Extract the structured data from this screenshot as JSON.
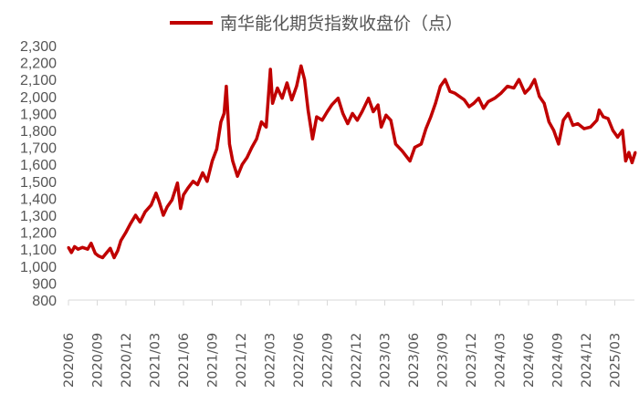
{
  "chart_data": {
    "type": "line",
    "title": "",
    "xlabel": "",
    "ylabel": "",
    "ylim": [
      800,
      2300
    ],
    "yticks": [
      "800",
      "900",
      "1,000",
      "1,100",
      "1,200",
      "1,300",
      "1,400",
      "1,500",
      "1,600",
      "1,700",
      "1,800",
      "1,900",
      "2,000",
      "2,100",
      "2,200",
      "2,300"
    ],
    "xticks": [
      "2020/06",
      "2020/09",
      "2020/12",
      "2021/03",
      "2021/06",
      "2021/09",
      "2021/12",
      "2022/03",
      "2022/06",
      "2022/09",
      "2022/12",
      "2023/03",
      "2023/06",
      "2023/09",
      "2023/12",
      "2024/03",
      "2024/06",
      "2024/09",
      "2024/12",
      "2025/03"
    ],
    "grid": false,
    "legend": "top-center",
    "series": [
      {
        "name": "南华能化期货指数收盘价（点）",
        "color": "#C00000",
        "points": [
          [
            "2020-06-01",
            1110
          ],
          [
            "2020-06-10",
            1080
          ],
          [
            "2020-06-20",
            1115
          ],
          [
            "2020-07-01",
            1100
          ],
          [
            "2020-07-15",
            1110
          ],
          [
            "2020-08-01",
            1100
          ],
          [
            "2020-08-12",
            1135
          ],
          [
            "2020-08-25",
            1075
          ],
          [
            "2020-09-05",
            1060
          ],
          [
            "2020-09-18",
            1050
          ],
          [
            "2020-10-01",
            1080
          ],
          [
            "2020-10-12",
            1105
          ],
          [
            "2020-10-24",
            1050
          ],
          [
            "2020-11-05",
            1090
          ],
          [
            "2020-11-15",
            1150
          ],
          [
            "2020-12-01",
            1200
          ],
          [
            "2020-12-15",
            1250
          ],
          [
            "2021-01-01",
            1300
          ],
          [
            "2021-01-15",
            1260
          ],
          [
            "2021-02-01",
            1320
          ],
          [
            "2021-02-20",
            1360
          ],
          [
            "2021-03-05",
            1430
          ],
          [
            "2021-03-15",
            1380
          ],
          [
            "2021-03-28",
            1300
          ],
          [
            "2021-04-10",
            1350
          ],
          [
            "2021-04-25",
            1390
          ],
          [
            "2021-05-12",
            1490
          ],
          [
            "2021-05-22",
            1340
          ],
          [
            "2021-06-01",
            1420
          ],
          [
            "2021-06-15",
            1460
          ],
          [
            "2021-07-01",
            1500
          ],
          [
            "2021-07-15",
            1480
          ],
          [
            "2021-08-01",
            1550
          ],
          [
            "2021-08-15",
            1500
          ],
          [
            "2021-09-01",
            1620
          ],
          [
            "2021-09-15",
            1690
          ],
          [
            "2021-09-28",
            1850
          ],
          [
            "2021-10-08",
            1900
          ],
          [
            "2021-10-15",
            2060
          ],
          [
            "2021-10-25",
            1720
          ],
          [
            "2021-11-05",
            1620
          ],
          [
            "2021-11-20",
            1530
          ],
          [
            "2021-12-05",
            1600
          ],
          [
            "2021-12-20",
            1640
          ],
          [
            "2022-01-05",
            1700
          ],
          [
            "2022-01-20",
            1750
          ],
          [
            "2022-02-05",
            1850
          ],
          [
            "2022-02-20",
            1820
          ],
          [
            "2022-03-03",
            2160
          ],
          [
            "2022-03-10",
            1960
          ],
          [
            "2022-03-25",
            2050
          ],
          [
            "2022-04-10",
            1990
          ],
          [
            "2022-04-25",
            2080
          ],
          [
            "2022-05-10",
            1980
          ],
          [
            "2022-05-25",
            2060
          ],
          [
            "2022-06-09",
            2180
          ],
          [
            "2022-06-20",
            2100
          ],
          [
            "2022-07-01",
            1920
          ],
          [
            "2022-07-15",
            1750
          ],
          [
            "2022-07-28",
            1880
          ],
          [
            "2022-08-15",
            1860
          ],
          [
            "2022-09-01",
            1910
          ],
          [
            "2022-09-15",
            1950
          ],
          [
            "2022-10-05",
            1990
          ],
          [
            "2022-10-20",
            1900
          ],
          [
            "2022-11-05",
            1840
          ],
          [
            "2022-11-20",
            1900
          ],
          [
            "2022-12-05",
            1860
          ],
          [
            "2022-12-20",
            1910
          ],
          [
            "2023-01-10",
            1990
          ],
          [
            "2023-01-25",
            1910
          ],
          [
            "2023-02-10",
            1950
          ],
          [
            "2023-02-20",
            1820
          ],
          [
            "2023-03-05",
            1890
          ],
          [
            "2023-03-20",
            1860
          ],
          [
            "2023-04-05",
            1720
          ],
          [
            "2023-04-25",
            1680
          ],
          [
            "2023-05-20",
            1620
          ],
          [
            "2023-06-05",
            1700
          ],
          [
            "2023-06-25",
            1720
          ],
          [
            "2023-07-10",
            1810
          ],
          [
            "2023-07-25",
            1880
          ],
          [
            "2023-08-10",
            1960
          ],
          [
            "2023-08-25",
            2060
          ],
          [
            "2023-09-10",
            2100
          ],
          [
            "2023-09-25",
            2030
          ],
          [
            "2023-10-10",
            2020
          ],
          [
            "2023-10-25",
            2000
          ],
          [
            "2023-11-10",
            1980
          ],
          [
            "2023-11-25",
            1940
          ],
          [
            "2023-12-10",
            1960
          ],
          [
            "2023-12-25",
            1990
          ],
          [
            "2024-01-10",
            1930
          ],
          [
            "2024-01-25",
            1970
          ],
          [
            "2024-02-15",
            1990
          ],
          [
            "2024-03-05",
            2020
          ],
          [
            "2024-03-25",
            2060
          ],
          [
            "2024-04-15",
            2050
          ],
          [
            "2024-05-01",
            2100
          ],
          [
            "2024-05-20",
            2020
          ],
          [
            "2024-06-05",
            2050
          ],
          [
            "2024-06-20",
            2100
          ],
          [
            "2024-07-05",
            2000
          ],
          [
            "2024-07-20",
            1960
          ],
          [
            "2024-08-05",
            1850
          ],
          [
            "2024-08-20",
            1800
          ],
          [
            "2024-09-05",
            1720
          ],
          [
            "2024-09-20",
            1860
          ],
          [
            "2024-10-05",
            1900
          ],
          [
            "2024-10-20",
            1830
          ],
          [
            "2024-11-05",
            1840
          ],
          [
            "2024-11-25",
            1810
          ],
          [
            "2024-12-15",
            1820
          ],
          [
            "2025-01-05",
            1860
          ],
          [
            "2025-01-12",
            1920
          ],
          [
            "2025-01-25",
            1880
          ],
          [
            "2025-02-10",
            1870
          ],
          [
            "2025-02-25",
            1800
          ],
          [
            "2025-03-10",
            1760
          ],
          [
            "2025-03-25",
            1800
          ],
          [
            "2025-04-05",
            1620
          ],
          [
            "2025-04-15",
            1670
          ],
          [
            "2025-04-25",
            1610
          ],
          [
            "2025-05-05",
            1670
          ]
        ]
      }
    ]
  }
}
